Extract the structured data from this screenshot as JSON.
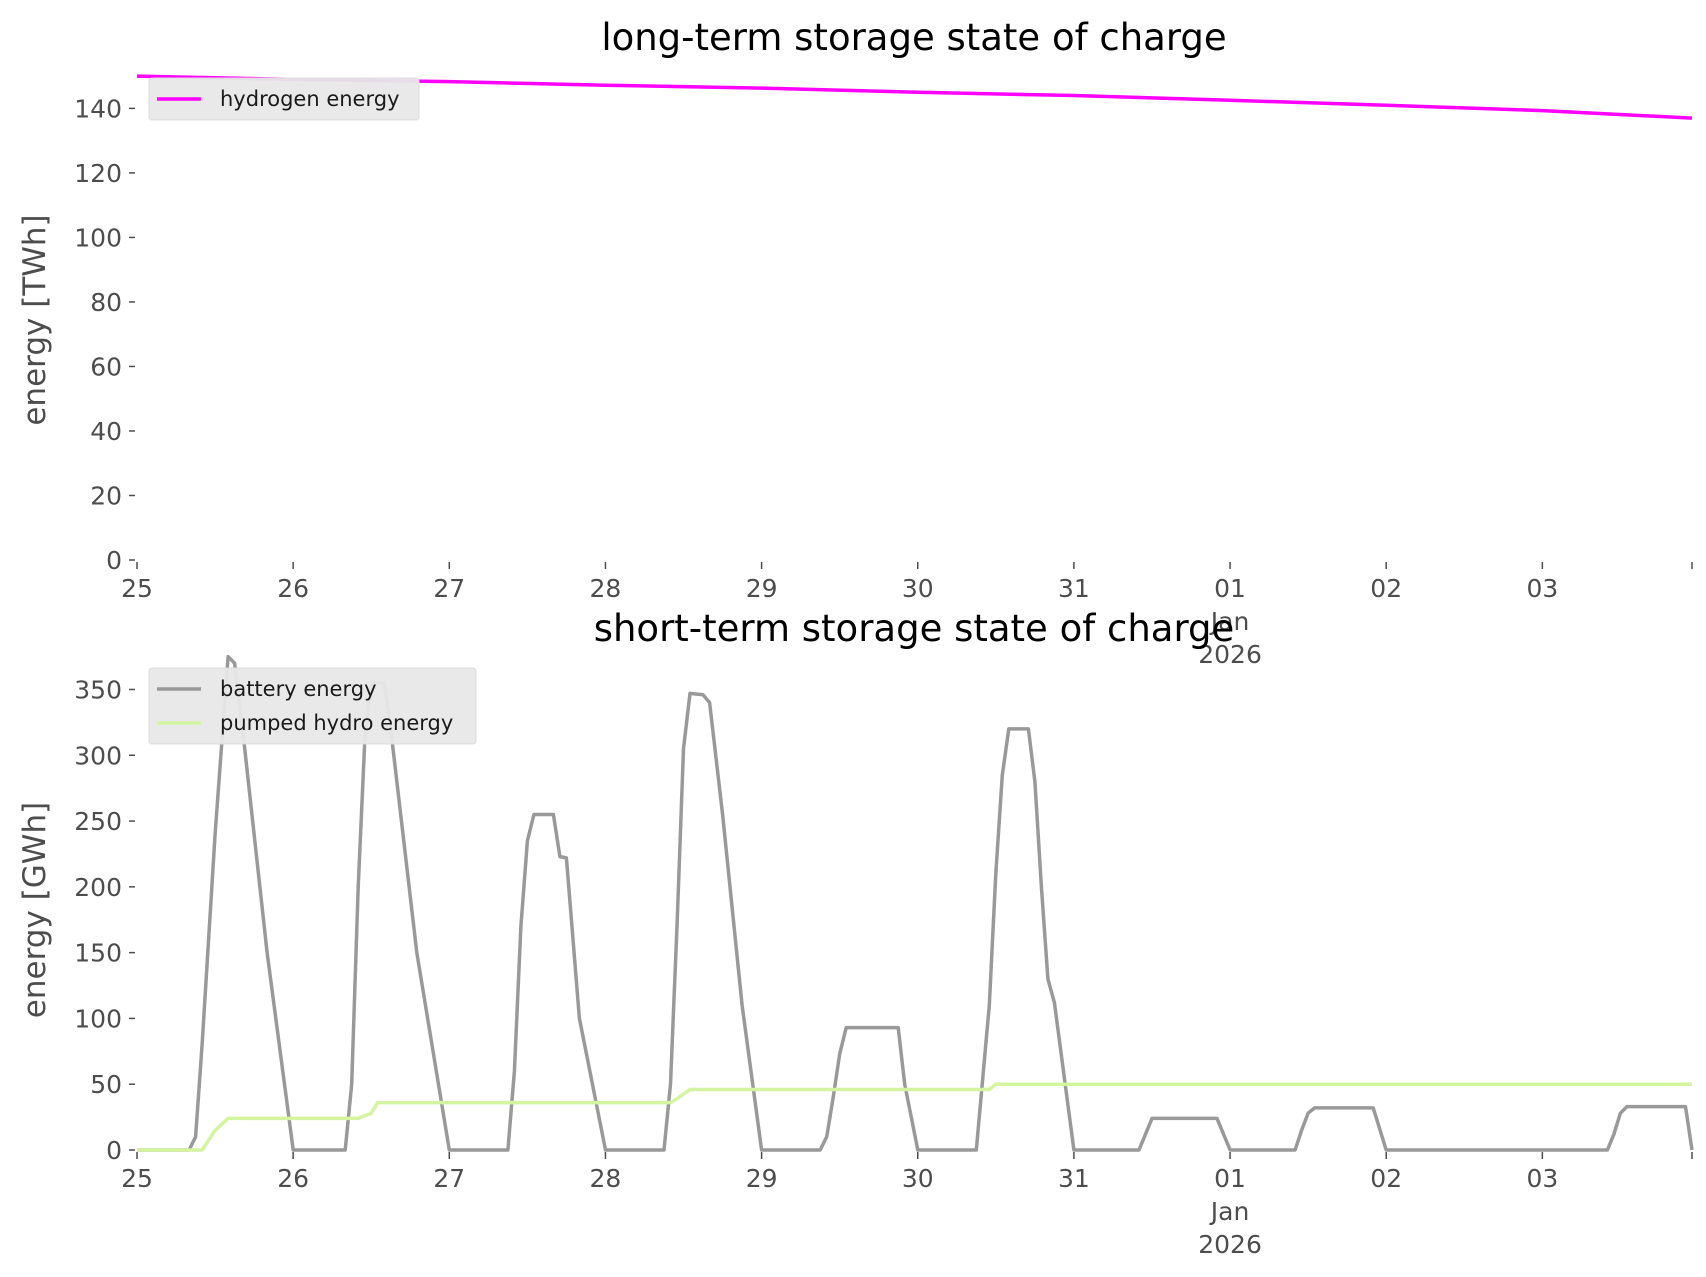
{
  "colors": {
    "hydrogen": "#ff00ff",
    "battery": "#999999",
    "pumped_hydro": "#d4f5a0",
    "legend_bg": "#e8e8e8",
    "tick": "#4d4d4d"
  },
  "chart_data": [
    {
      "type": "line",
      "title": "long-term storage state of charge",
      "xlabel": "",
      "ylabel": "energy [TWh]",
      "xlim": [
        "2025-12-25T00:00",
        "2026-01-03T23:00"
      ],
      "ylim": [
        0,
        155
      ],
      "yticks": [
        0,
        20,
        40,
        60,
        80,
        100,
        120,
        140
      ],
      "ytick_labels": [
        "0",
        "20",
        "40",
        "60",
        "80",
        "100",
        "120",
        "140"
      ],
      "xtick_labels": [
        {
          "date": "2025-12-25T00:00",
          "label": "25"
        },
        {
          "date": "2025-12-26T00:00",
          "label": "26"
        },
        {
          "date": "2025-12-27T00:00",
          "label": "27"
        },
        {
          "date": "2025-12-28T00:00",
          "label": "28"
        },
        {
          "date": "2025-12-29T00:00",
          "label": "29"
        },
        {
          "date": "2025-12-30T00:00",
          "label": "30"
        },
        {
          "date": "2025-12-31T00:00",
          "label": "31"
        },
        {
          "date": "2026-01-01T00:00",
          "label": "01\nJan\n2026"
        },
        {
          "date": "2026-01-02T00:00",
          "label": "02"
        },
        {
          "date": "2026-01-03T00:00",
          "label": "03"
        }
      ],
      "grid": false,
      "legend": "upper-left",
      "series": [
        {
          "name": "hydrogen energy",
          "color": "#ff00ff",
          "points": [
            [
              "2025-12-25T00:00",
              150.0
            ],
            [
              "2025-12-26T00:00",
              149.0
            ],
            [
              "2025-12-27T00:00",
              148.3
            ],
            [
              "2025-12-28T00:00",
              147.2
            ],
            [
              "2025-12-29T00:00",
              146.3
            ],
            [
              "2025-12-30T00:00",
              145.0
            ],
            [
              "2025-12-31T00:00",
              144.0
            ],
            [
              "2026-01-01T00:00",
              142.5
            ],
            [
              "2026-01-02T00:00",
              141.0
            ],
            [
              "2026-01-03T00:00",
              139.3
            ],
            [
              "2026-01-03T23:00",
              137.0
            ]
          ]
        }
      ]
    },
    {
      "type": "line",
      "title": "short-term storage state of charge",
      "xlabel": "",
      "ylabel": "energy [GWh]",
      "xlim": [
        "2025-12-25T00:00",
        "2026-01-03T23:00"
      ],
      "ylim": [
        0,
        380
      ],
      "yticks": [
        0,
        50,
        100,
        150,
        200,
        250,
        300,
        350
      ],
      "ytick_labels": [
        "0",
        "50",
        "100",
        "150",
        "200",
        "250",
        "300",
        "350"
      ],
      "xtick_labels": [
        {
          "date": "2025-12-25T00:00",
          "label": "25"
        },
        {
          "date": "2025-12-26T00:00",
          "label": "26"
        },
        {
          "date": "2025-12-27T00:00",
          "label": "27"
        },
        {
          "date": "2025-12-28T00:00",
          "label": "28"
        },
        {
          "date": "2025-12-29T00:00",
          "label": "29"
        },
        {
          "date": "2025-12-30T00:00",
          "label": "30"
        },
        {
          "date": "2025-12-31T00:00",
          "label": "31"
        },
        {
          "date": "2026-01-01T00:00",
          "label": "01\nJan\n2026"
        },
        {
          "date": "2026-01-02T00:00",
          "label": "02"
        },
        {
          "date": "2026-01-03T00:00",
          "label": "03"
        }
      ],
      "grid": false,
      "legend": "upper-left",
      "series": [
        {
          "name": "battery energy",
          "color": "#999999",
          "points": [
            [
              "2025-12-25T00:00",
              0
            ],
            [
              "2025-12-25T08:00",
              0
            ],
            [
              "2025-12-25T09:00",
              10
            ],
            [
              "2025-12-25T10:00",
              80
            ],
            [
              "2025-12-25T12:00",
              240
            ],
            [
              "2025-12-25T14:00",
              375
            ],
            [
              "2025-12-25T15:00",
              370
            ],
            [
              "2025-12-25T16:00",
              330
            ],
            [
              "2025-12-25T20:00",
              150
            ],
            [
              "2025-12-26T00:00",
              0
            ],
            [
              "2025-12-26T08:00",
              0
            ],
            [
              "2025-12-26T09:00",
              50
            ],
            [
              "2025-12-26T10:00",
              200
            ],
            [
              "2025-12-26T11:00",
              310
            ],
            [
              "2025-12-26T12:00",
              355
            ],
            [
              "2025-12-26T14:00",
              355
            ],
            [
              "2025-12-26T15:00",
              320
            ],
            [
              "2025-12-26T19:00",
              150
            ],
            [
              "2025-12-27T00:00",
              0
            ],
            [
              "2025-12-27T09:00",
              0
            ],
            [
              "2025-12-27T10:00",
              60
            ],
            [
              "2025-12-27T11:00",
              170
            ],
            [
              "2025-12-27T12:00",
              235
            ],
            [
              "2025-12-27T13:00",
              255
            ],
            [
              "2025-12-27T16:00",
              255
            ],
            [
              "2025-12-27T17:00",
              223
            ],
            [
              "2025-12-27T18:00",
              222
            ],
            [
              "2025-12-27T20:00",
              100
            ],
            [
              "2025-12-28T00:00",
              0
            ],
            [
              "2025-12-28T09:00",
              0
            ],
            [
              "2025-12-28T10:00",
              50
            ],
            [
              "2025-12-28T11:00",
              170
            ],
            [
              "2025-12-28T12:00",
              305
            ],
            [
              "2025-12-28T13:00",
              347
            ],
            [
              "2025-12-28T15:00",
              346
            ],
            [
              "2025-12-28T16:00",
              340
            ],
            [
              "2025-12-28T18:00",
              255
            ],
            [
              "2025-12-28T21:00",
              110
            ],
            [
              "2025-12-29T00:00",
              0
            ],
            [
              "2025-12-29T09:00",
              0
            ],
            [
              "2025-12-29T10:00",
              10
            ],
            [
              "2025-12-29T11:00",
              40
            ],
            [
              "2025-12-29T12:00",
              73
            ],
            [
              "2025-12-29T13:00",
              93
            ],
            [
              "2025-12-29T21:00",
              93
            ],
            [
              "2025-12-29T22:00",
              50
            ],
            [
              "2025-12-30T00:00",
              0
            ],
            [
              "2025-12-30T09:00",
              0
            ],
            [
              "2025-12-30T11:00",
              110
            ],
            [
              "2025-12-30T12:00",
              210
            ],
            [
              "2025-12-30T13:00",
              285
            ],
            [
              "2025-12-30T14:00",
              320
            ],
            [
              "2025-12-30T17:00",
              320
            ],
            [
              "2025-12-30T18:00",
              280
            ],
            [
              "2025-12-30T19:00",
              200
            ],
            [
              "2025-12-30T20:00",
              130
            ],
            [
              "2025-12-30T21:00",
              112
            ],
            [
              "2025-12-31T00:00",
              0
            ],
            [
              "2025-12-31T10:00",
              0
            ],
            [
              "2025-12-31T12:00",
              24
            ],
            [
              "2025-12-31T22:00",
              24
            ],
            [
              "2026-01-01T00:00",
              0
            ],
            [
              "2026-01-01T10:00",
              0
            ],
            [
              "2026-01-01T11:00",
              15
            ],
            [
              "2026-01-01T12:00",
              28
            ],
            [
              "2026-01-01T13:00",
              32
            ],
            [
              "2026-01-01T22:00",
              32
            ],
            [
              "2026-01-02T00:00",
              0
            ],
            [
              "2026-01-03T10:00",
              0
            ],
            [
              "2026-01-03T11:00",
              12
            ],
            [
              "2026-01-03T12:00",
              28
            ],
            [
              "2026-01-03T13:00",
              33
            ],
            [
              "2026-01-03T22:00",
              33
            ],
            [
              "2026-01-03T23:00",
              0
            ]
          ]
        },
        {
          "name": "pumped hydro energy",
          "color": "#d4f5a0",
          "points": [
            [
              "2025-12-25T00:00",
              0
            ],
            [
              "2025-12-25T10:00",
              0
            ],
            [
              "2025-12-25T12:00",
              15
            ],
            [
              "2025-12-25T14:00",
              24
            ],
            [
              "2025-12-26T10:00",
              24
            ],
            [
              "2025-12-26T12:00",
              28
            ],
            [
              "2025-12-26T13:00",
              36
            ],
            [
              "2025-12-28T10:00",
              36
            ],
            [
              "2025-12-28T11:00",
              39
            ],
            [
              "2025-12-28T13:00",
              46
            ],
            [
              "2025-12-30T11:00",
              46
            ],
            [
              "2025-12-30T12:00",
              50
            ],
            [
              "2026-01-03T23:00",
              50
            ]
          ]
        }
      ]
    }
  ]
}
